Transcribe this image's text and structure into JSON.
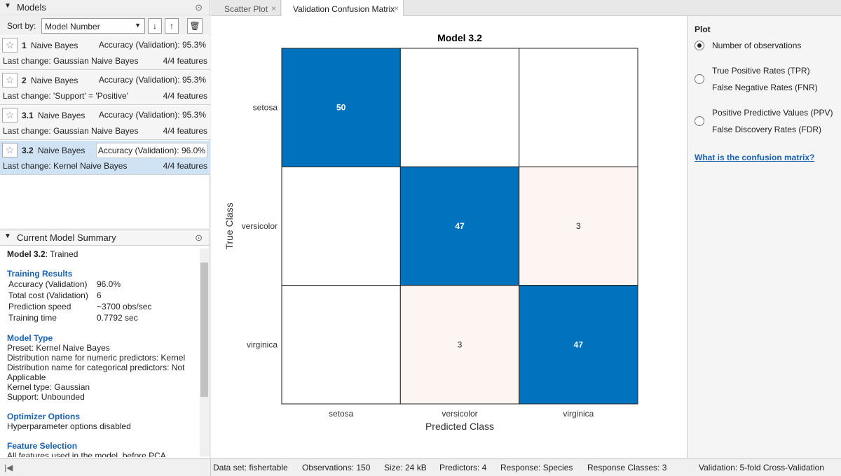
{
  "models_panel": {
    "title": "Models",
    "sort_label": "Sort by:",
    "sort_value": "Model Number",
    "models": [
      {
        "number": "1",
        "name": "Naive Bayes",
        "metric": "Accuracy (Validation): 95.3%",
        "last_change": "Last change: Gaussian Naive Bayes",
        "features": "4/4 features"
      },
      {
        "number": "2",
        "name": "Naive Bayes",
        "metric": "Accuracy (Validation): 95.3%",
        "last_change": "Last change: 'Support' = 'Positive'",
        "features": "4/4 features"
      },
      {
        "number": "3.1",
        "name": "Naive Bayes",
        "metric": "Accuracy (Validation): 95.3%",
        "last_change": "Last change: Gaussian Naive Bayes",
        "features": "4/4 features"
      },
      {
        "number": "3.2",
        "name": "Naive Bayes",
        "metric": "Accuracy (Validation): 96.0%",
        "last_change": "Last change: Kernel Naive Bayes",
        "features": "4/4 features",
        "selected": true
      }
    ]
  },
  "summary_panel": {
    "title": "Current Model Summary",
    "model": "Model 3.2",
    "status": ": Trained",
    "training_heading": "Training Results",
    "training_rows": [
      [
        "Accuracy (Validation)",
        "96.0%"
      ],
      [
        "Total cost (Validation)",
        "6"
      ],
      [
        "Prediction speed",
        "~3700 obs/sec"
      ],
      [
        "Training time",
        "0.7792 sec"
      ]
    ],
    "sections": [
      {
        "heading": "Model Type",
        "lines": [
          "Preset: Kernel Naive Bayes",
          "Distribution name for numeric predictors: Kernel",
          "Distribution name for categorical predictors: Not Applicable",
          "Kernel type: Gaussian",
          "Support: Unbounded"
        ]
      },
      {
        "heading": "Optimizer Options",
        "lines": [
          "Hyperparameter options disabled"
        ]
      },
      {
        "heading": "Feature Selection",
        "lines": [
          "All features used in the model, before PCA"
        ]
      }
    ]
  },
  "tabs": [
    "Scatter Plot",
    "Validation Confusion Matrix"
  ],
  "plot_options": {
    "title": "Plot",
    "options": [
      {
        "lines": [
          "Number of observations"
        ],
        "selected": true
      },
      {
        "lines": [
          "True Positive Rates (TPR)",
          "False Negative Rates (FNR)"
        ]
      },
      {
        "lines": [
          "Positive Predictive Values (PPV)",
          "False Discovery Rates (FDR)"
        ]
      }
    ],
    "link": "What is the confusion matrix?"
  },
  "chart_data": {
    "type": "heatmap",
    "title": "Model 3.2",
    "xlabel": "Predicted Class",
    "ylabel": "True Class",
    "categories": [
      "setosa",
      "versicolor",
      "virginica"
    ],
    "values": [
      [
        50,
        null,
        null
      ],
      [
        null,
        47,
        3
      ],
      [
        null,
        3,
        47
      ]
    ]
  },
  "status_bar": [
    "Data set: fishertable",
    "Observations: 150",
    "Size: 24 kB",
    "Predictors: 4",
    "Response: Species",
    "Response Classes: 3",
    "Validation: 5-fold Cross-Validation"
  ]
}
